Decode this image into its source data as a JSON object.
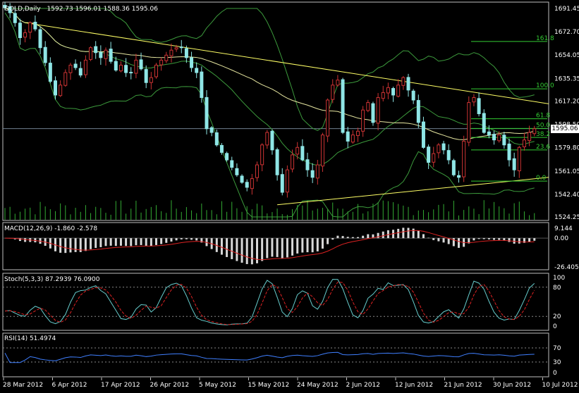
{
  "colors": {
    "background": "#000000",
    "frame": "#c0c0c0",
    "bull": "#cc3333",
    "bear": "#8fe6e6",
    "trendline": "#ffff66",
    "bollinger": "#3c9a3c",
    "ma": "#e6e6a0",
    "fib": "#33cc33",
    "macd_hist": "#d8d8d8",
    "macd_signal": "#dd2222",
    "stoch_main": "#66cccc",
    "stoch_signal": "#dd2222",
    "rsi": "#3f7fff",
    "volume": "#33aa33",
    "current_price_line": "#708090"
  },
  "main": {
    "title": "GOLD,Daily",
    "ohlc": "1592.73 1596.01 1588.36 1595.06",
    "current_price": "1595.06",
    "price_labels": [
      "1691.45",
      "1672.70",
      "1654.05",
      "1635.35",
      "1617.20",
      "1598.50",
      "1579.80",
      "1561.05",
      "1542.40",
      "1524.25"
    ],
    "fib_levels": [
      {
        "label": "161.8",
        "price": 1665.0
      },
      {
        "label": "100.0",
        "price": 1627.0
      },
      {
        "label": "61.8",
        "price": 1603.0
      },
      {
        "label": "50.0",
        "price": 1595.2
      },
      {
        "label": "38.2",
        "price": 1588.0
      },
      {
        "label": "23.6",
        "price": 1578.0
      },
      {
        "label": "0.0",
        "price": 1553.0
      }
    ]
  },
  "macd": {
    "title": "MACD(12,26,9) -1.860 -2.578",
    "labels": [
      "9.144",
      "0.00",
      "-26.405"
    ]
  },
  "stoch": {
    "title": "Stoch(5,3,3) 87.2939 76.0900",
    "labels": [
      "100",
      "80",
      "20",
      "0"
    ]
  },
  "rsi": {
    "title": "RSI(14) 51.4974",
    "labels": [
      "70",
      "30",
      "0"
    ]
  },
  "x_labels": [
    "28 Mar 2012",
    "6 Apr 2012",
    "17 Apr 2012",
    "26 Apr 2012",
    "5 May 2012",
    "15 May 2012",
    "24 May 2012",
    "2 Jun 2012",
    "12 Jun 2012",
    "21 Jun 2012",
    "30 Jun 2012",
    "10 Jul 2012"
  ],
  "chart_data": {
    "type": "candlestick",
    "symbol": "GOLD",
    "timeframe": "Daily",
    "ylim": [
      1524.25,
      1691.45
    ],
    "y_ticks": [
      1691.45,
      1672.7,
      1654.05,
      1635.35,
      1617.2,
      1598.5,
      1579.8,
      1561.05,
      1542.4,
      1524.25
    ],
    "x_tick_labels": [
      "28 Mar 2012",
      "6 Apr 2012",
      "17 Apr 2012",
      "26 Apr 2012",
      "5 May 2012",
      "15 May 2012",
      "24 May 2012",
      "2 Jun 2012",
      "12 Jun 2012",
      "21 Jun 2012",
      "30 Jun 2012",
      "10 Jul 2012"
    ],
    "last_ohlc": {
      "open": 1592.73,
      "high": 1596.01,
      "low": 1588.36,
      "close": 1595.06
    },
    "close": [
      1692,
      1688,
      1680,
      1668,
      1672,
      1680,
      1675,
      1660,
      1648,
      1633,
      1622,
      1630,
      1640,
      1646,
      1644,
      1638,
      1650,
      1660,
      1656,
      1652,
      1658,
      1649,
      1642,
      1646,
      1640,
      1640,
      1650,
      1643,
      1632,
      1636,
      1646,
      1650,
      1654,
      1658,
      1660,
      1660,
      1652,
      1644,
      1640,
      1620,
      1595,
      1592,
      1582,
      1576,
      1570,
      1564,
      1558,
      1552,
      1548,
      1555,
      1566,
      1582,
      1592,
      1578,
      1558,
      1544,
      1562,
      1574,
      1580,
      1570,
      1562,
      1556,
      1566,
      1590,
      1618,
      1630,
      1634,
      1592,
      1585,
      1590,
      1593,
      1610,
      1616,
      1600,
      1620,
      1624,
      1628,
      1622,
      1630,
      1636,
      1626,
      1618,
      1600,
      1580,
      1568,
      1575,
      1582,
      1578,
      1570,
      1558,
      1556,
      1585,
      1616,
      1620,
      1607,
      1592,
      1590,
      1586,
      1590,
      1582,
      1570,
      1562,
      1580,
      1586,
      1592,
      1595
    ],
    "series": [
      {
        "name": "MACD(12,26,9)",
        "main": -1.86,
        "signal": -2.578
      },
      {
        "name": "Stoch(5,3,3)",
        "main": 87.2939,
        "signal": 76.09
      },
      {
        "name": "RSI(14)",
        "value": 51.4974
      }
    ],
    "macd_ylim": [
      -26.405,
      9.144
    ],
    "stoch_levels": [
      80,
      20
    ],
    "rsi_levels": [
      70,
      30
    ]
  }
}
